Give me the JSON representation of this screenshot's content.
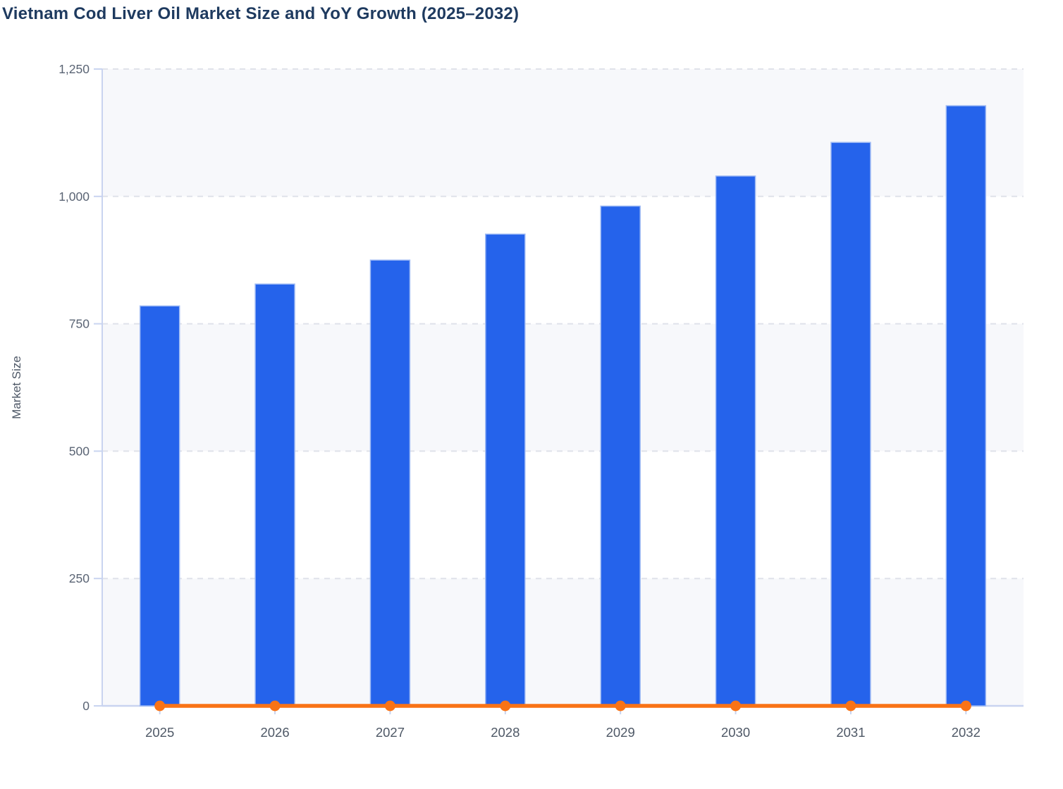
{
  "title": "Vietnam Cod Liver Oil Market Size and YoY Growth (2025–2032)",
  "chart_data": {
    "type": "bar",
    "title": "Vietnam Cod Liver Oil Market Size and YoY Growth (2025–2032)",
    "categories": [
      "2025",
      "2026",
      "2027",
      "2028",
      "2029",
      "2030",
      "2031",
      "2032"
    ],
    "series": [
      {
        "name": "Market Size",
        "type": "bar",
        "color": "#2563eb",
        "values": [
          785,
          828,
          875,
          926,
          981,
          1040,
          1106,
          1178
        ]
      },
      {
        "name": "YoY Growth",
        "type": "line",
        "color": "#f97316",
        "values": [
          0,
          0,
          0,
          0,
          0,
          0,
          0,
          0
        ],
        "note": "line with circular markers renders flat along the zero baseline at the left-axis scale"
      }
    ],
    "xlabel": "",
    "ylabel": "Market Size",
    "ylim": [
      0,
      1250
    ],
    "yticks": [
      0,
      250,
      500,
      750,
      1000,
      1250
    ],
    "ytick_labels": [
      "0",
      "250",
      "500",
      "750",
      "1,000",
      "1,250"
    ],
    "grid": "horizontal dashed gridlines",
    "plot_bands": "alternating horizontal background bands between gridlines",
    "legend": "none"
  },
  "colors": {
    "bar_fill": "#2563eb",
    "bar_edge": "#9db9f4",
    "line": "#f97316",
    "title_text": "#1e3a5f",
    "axis_text": "#525d6e",
    "axis_line": "#c9d4f0",
    "gridline": "#dfe2ea",
    "band_fill": "#f7f8fb",
    "background": "#ffffff"
  }
}
